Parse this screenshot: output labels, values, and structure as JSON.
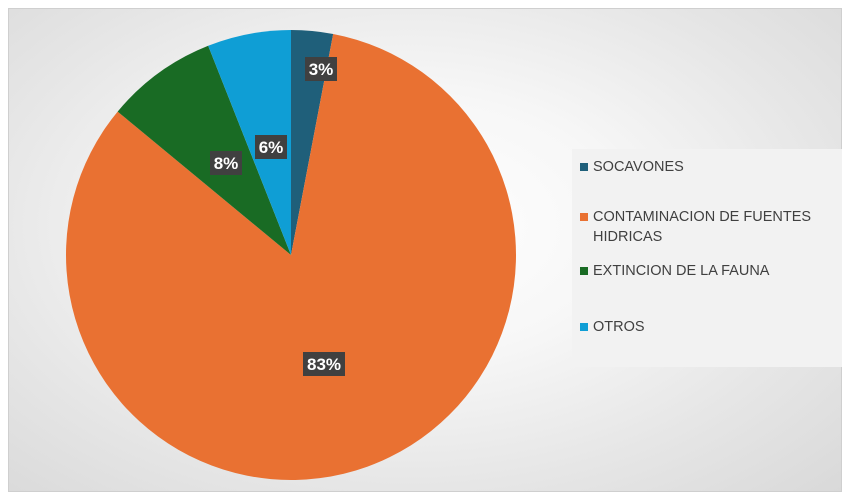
{
  "chart_data": {
    "type": "pie",
    "title": "",
    "slices": [
      {
        "label": "SOCAVONES",
        "value": 3,
        "display": "3%",
        "color": "#1f5f7a"
      },
      {
        "label": "CONTAMINACION DE FUENTES HIDRICAS",
        "value": 83,
        "display": "83%",
        "color": "#e97132"
      },
      {
        "label": "EXTINCION DE LA FAUNA",
        "value": 8,
        "display": "8%",
        "color": "#196b24"
      },
      {
        "label": "OTROS",
        "value": 6,
        "display": "6%",
        "color": "#0f9ed5"
      }
    ],
    "legend_position": "right"
  }
}
